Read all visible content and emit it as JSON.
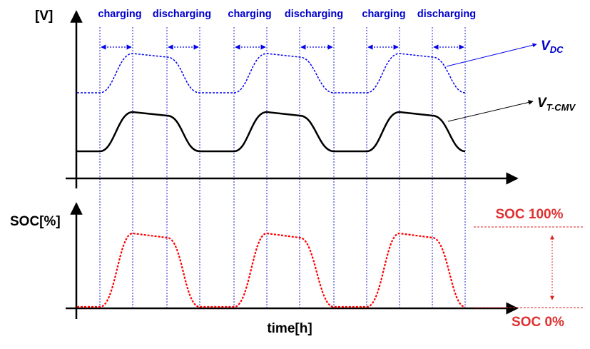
{
  "top_panel": {
    "y_axis_label": "[V]",
    "phase_labels": [
      "charging",
      "discharging",
      "charging",
      "discharging",
      "charging",
      "discharging"
    ],
    "vdc_label": {
      "main": "V",
      "sub": "DC"
    },
    "vtcmv_label": {
      "main": "V",
      "sub": "T-CMV"
    }
  },
  "bottom_panel": {
    "y_axis_label": "SOC[%]",
    "x_axis_label": "time[h]",
    "soc_high_label": "SOC 100%",
    "soc_low_label": "SOC 0%"
  },
  "colors": {
    "axis": "#000000",
    "vdc": "#0000ee",
    "vtcmv": "#000000",
    "soc": "#ff0000",
    "soc_label": "#e03030",
    "guide": "#2020d0"
  }
}
